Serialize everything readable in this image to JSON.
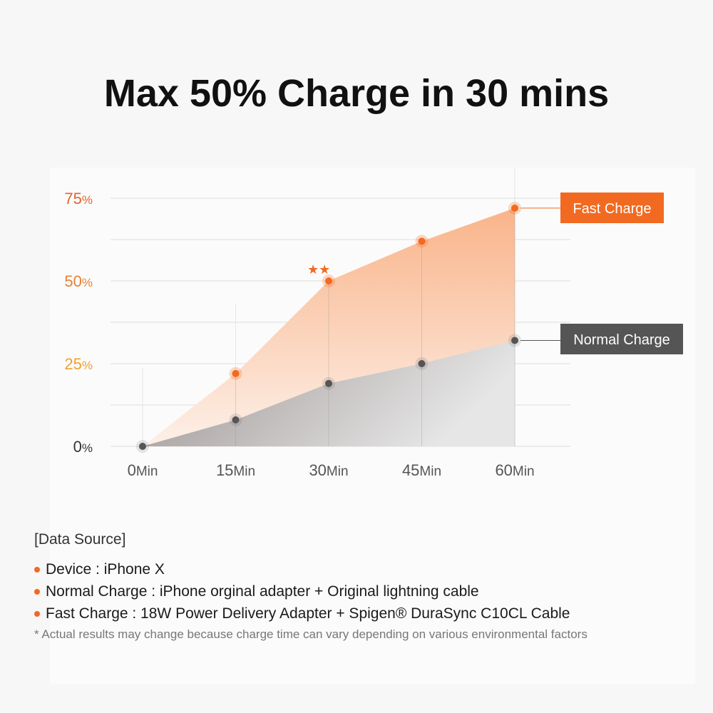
{
  "chart_data": {
    "type": "area",
    "title": "Max 50% Charge in 30 mins",
    "categories": [
      "0Min",
      "15Min",
      "30Min",
      "45Min",
      "60Min"
    ],
    "x": [
      0,
      15,
      30,
      45,
      60
    ],
    "x_tick_numbers": [
      "0",
      "15",
      "30",
      "45",
      "60"
    ],
    "x_tick_unit": "Min",
    "y_ticks": [
      {
        "value": 0,
        "number": "0",
        "unit": "%",
        "color": "#333333"
      },
      {
        "value": 25,
        "number": "25",
        "unit": "%",
        "color": "#f0a030"
      },
      {
        "value": 50,
        "number": "50",
        "unit": "%",
        "color": "#ec7f33"
      },
      {
        "value": 75,
        "number": "75",
        "unit": "%",
        "color": "#e8622a"
      }
    ],
    "ylim": [
      0,
      75
    ],
    "grid": true,
    "series": [
      {
        "name": "Fast Charge",
        "values": [
          0,
          22,
          50,
          62,
          72
        ],
        "color": "#f26a21"
      },
      {
        "name": "Normal Charge",
        "values": [
          0,
          8,
          19,
          25,
          32
        ],
        "color": "#555555"
      }
    ],
    "annotation": "★★",
    "legend": "right, labels next to series ends"
  },
  "notes": {
    "heading": "[Data Source]",
    "items": [
      "Device :  iPhone X",
      "Normal Charge :   iPhone orginal adapter + Original lightning cable",
      "Fast Charge :  18W Power Delivery Adapter + Spigen® DuraSync C10CL Cable"
    ],
    "footnote": "* Actual results may change because charge time can vary depending on various environmental factors"
  }
}
